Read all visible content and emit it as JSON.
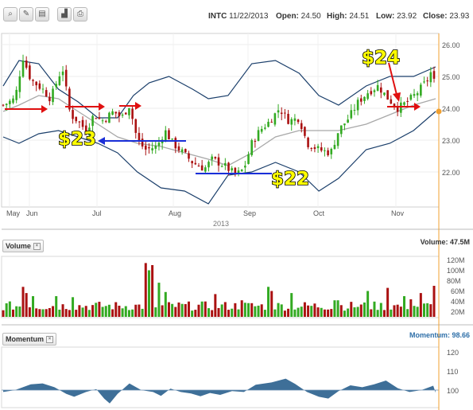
{
  "toolbar": {
    "buttons": [
      {
        "name": "search-icon",
        "glyph": "⌕"
      },
      {
        "name": "pencil-icon",
        "glyph": "✎"
      },
      {
        "name": "document-icon",
        "glyph": "▤"
      },
      {
        "name": "chart-icon",
        "glyph": "▟"
      },
      {
        "name": "print-icon",
        "glyph": "⎙"
      }
    ]
  },
  "quote": {
    "symbol": "INTC",
    "date": "11/22/2013",
    "open_label": "Open:",
    "open": "24.50",
    "high_label": "High:",
    "high": "24.51",
    "low_label": "Low:",
    "low": "23.92",
    "close_label": "Close:",
    "close": "23.93"
  },
  "price_axis_ticks": [
    "26.00",
    "25.00",
    "24.00",
    "23.00",
    "22.00"
  ],
  "month_labels": [
    "May",
    "Jun",
    "Jul",
    "Aug",
    "Sep",
    "Oct",
    "Nov"
  ],
  "year_label": "2013",
  "volume_pane": {
    "title": "Volume",
    "readout": "Volume: 47.5M",
    "ticks": [
      "120M",
      "100M",
      "80M",
      "60M",
      "40M",
      "20M"
    ]
  },
  "momentum_pane": {
    "title": "Momentum",
    "readout": "Momentum: 98.66",
    "ticks": [
      "120",
      "110",
      "100"
    ]
  },
  "annotations": {
    "left": "$23",
    "middle": "$22",
    "right": "$24"
  },
  "colors": {
    "up": "#33aa22",
    "down": "#aa1111",
    "band": "#1b3f6b",
    "ma": "#a8a8a8",
    "momentum": "#3e6f98",
    "cursor": "#f0a030",
    "red_arrow": "#e01010",
    "blue_arrow": "#1a2fd8"
  },
  "chart_data": {
    "type": "candlestick",
    "title": "INTC",
    "x_range": [
      "2013-05-15",
      "2013-11-22"
    ],
    "price_ylim": [
      21.0,
      26.2
    ],
    "bollinger": {
      "upper": [
        [
          0,
          24.7
        ],
        [
          20,
          25.5
        ],
        [
          45,
          25.4
        ],
        [
          70,
          24.6
        ],
        [
          95,
          24.2
        ],
        [
          120,
          23.7
        ],
        [
          145,
          23.7
        ],
        [
          165,
          24.4
        ],
        [
          185,
          24.8
        ],
        [
          210,
          25.0
        ],
        [
          240,
          24.6
        ],
        [
          260,
          24.3
        ],
        [
          285,
          24.4
        ],
        [
          315,
          25.4
        ],
        [
          345,
          25.5
        ],
        [
          375,
          25.1
        ],
        [
          400,
          24.4
        ],
        [
          425,
          24.1
        ],
        [
          460,
          24.7
        ],
        [
          490,
          25.0
        ],
        [
          520,
          25.0
        ],
        [
          548,
          25.3
        ]
      ],
      "middle": [
        [
          0,
          23.9
        ],
        [
          20,
          24.1
        ],
        [
          45,
          24.4
        ],
        [
          70,
          24.3
        ],
        [
          95,
          23.9
        ],
        [
          120,
          23.5
        ],
        [
          145,
          23.1
        ],
        [
          170,
          22.9
        ],
        [
          200,
          22.8
        ],
        [
          230,
          22.6
        ],
        [
          260,
          22.4
        ],
        [
          285,
          22.2
        ],
        [
          315,
          22.6
        ],
        [
          345,
          23.1
        ],
        [
          375,
          23.3
        ],
        [
          400,
          23.3
        ],
        [
          425,
          23.3
        ],
        [
          460,
          23.5
        ],
        [
          490,
          23.8
        ],
        [
          520,
          24.1
        ],
        [
          548,
          24.3
        ]
      ],
      "lower": [
        [
          0,
          23.1
        ],
        [
          20,
          22.9
        ],
        [
          45,
          23.2
        ],
        [
          70,
          23.3
        ],
        [
          95,
          23.1
        ],
        [
          120,
          22.9
        ],
        [
          145,
          22.6
        ],
        [
          170,
          22.0
        ],
        [
          200,
          21.5
        ],
        [
          230,
          21.4
        ],
        [
          260,
          21.0
        ],
        [
          285,
          21.9
        ],
        [
          315,
          22.0
        ],
        [
          345,
          22.3
        ],
        [
          375,
          22.0
        ],
        [
          400,
          21.4
        ],
        [
          425,
          21.8
        ],
        [
          460,
          22.7
        ],
        [
          490,
          22.9
        ],
        [
          520,
          23.3
        ],
        [
          548,
          23.9
        ]
      ],
      "x_units": "pixel-free index 0-548 along plot"
    },
    "series": [
      {
        "name": "Volume",
        "ylim": [
          0,
          125
        ],
        "units": "M"
      },
      {
        "name": "Momentum",
        "ylim": [
          90,
          125
        ]
      }
    ],
    "last": {
      "open": 24.5,
      "high": 24.51,
      "low": 23.92,
      "close": 23.93,
      "volume_m": 47.5,
      "momentum": 98.66
    }
  }
}
